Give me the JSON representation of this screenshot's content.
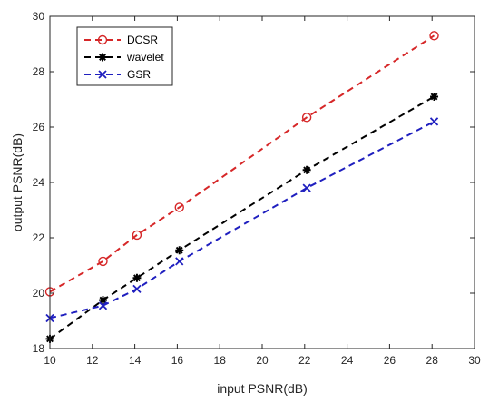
{
  "chart_data": {
    "type": "line",
    "xlabel": "input PSNR(dB)",
    "ylabel": "output PSNR(dB)",
    "xlim": [
      10,
      30
    ],
    "ylim": [
      18,
      30
    ],
    "xticks": [
      10,
      12,
      14,
      16,
      18,
      20,
      22,
      24,
      26,
      28,
      30
    ],
    "yticks": [
      18,
      20,
      22,
      24,
      26,
      28,
      30
    ],
    "grid": false,
    "legend_position": "top-left",
    "series": [
      {
        "name": "DCSR",
        "color": "#d62728",
        "marker": "circle",
        "line_style": "dashed",
        "x": [
          10.0,
          12.5,
          14.1,
          16.1,
          22.1,
          28.1
        ],
        "y": [
          20.05,
          21.15,
          22.1,
          23.1,
          26.35,
          29.3
        ]
      },
      {
        "name": "wavelet",
        "color": "#000000",
        "marker": "asterisk",
        "line_style": "dashed",
        "x": [
          10.0,
          12.5,
          14.1,
          16.1,
          22.1,
          28.1
        ],
        "y": [
          18.35,
          19.75,
          20.55,
          21.55,
          24.45,
          27.1
        ]
      },
      {
        "name": "GSR",
        "color": "#1f1fbf",
        "marker": "x",
        "line_style": "dashed",
        "x": [
          10.0,
          12.5,
          14.1,
          16.1,
          22.1,
          28.1
        ],
        "y": [
          19.1,
          19.55,
          20.15,
          21.15,
          23.8,
          26.2
        ]
      }
    ]
  }
}
